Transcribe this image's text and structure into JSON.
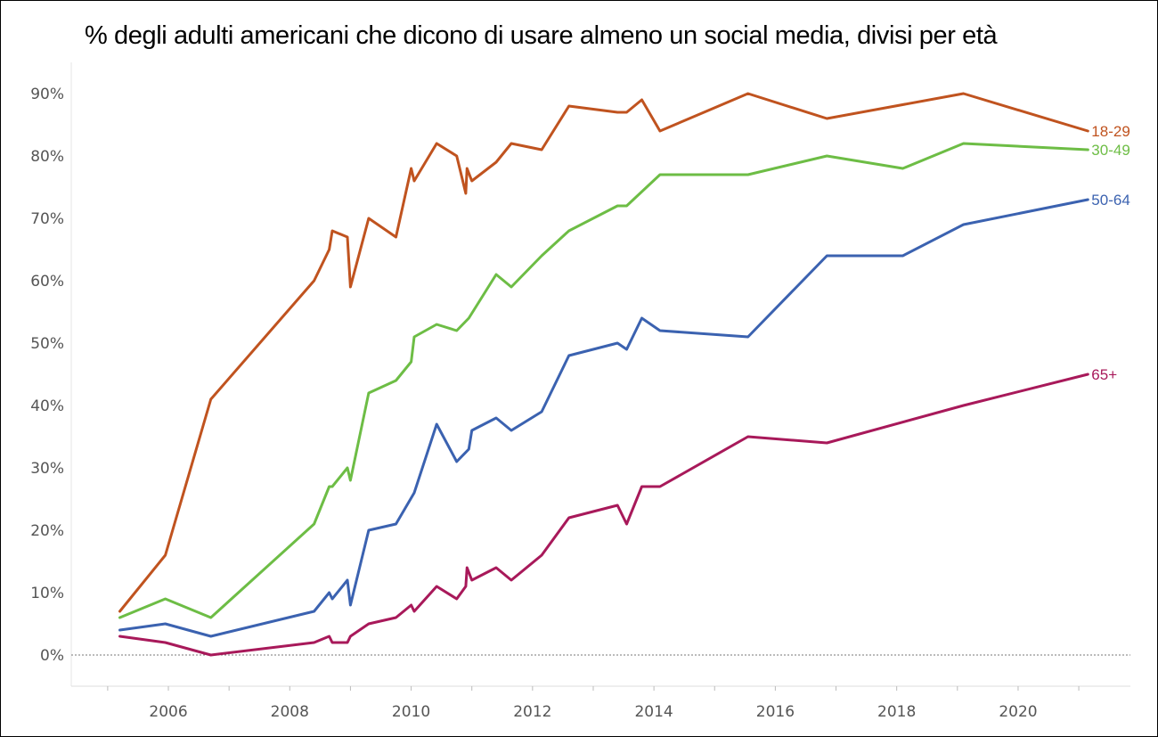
{
  "chart_data": {
    "type": "line",
    "title": "% degli adulti americani che dicono di usare almeno un social media, divisi per età",
    "xlabel": "",
    "ylabel": "",
    "xlim": [
      2004.4,
      2021.85
    ],
    "ylim": [
      -5,
      95
    ],
    "x_ticks": [
      "2006",
      "2008",
      "2010",
      "2012",
      "2014",
      "2016",
      "2018",
      "2020"
    ],
    "y_ticks": [
      "0%",
      "10%",
      "20%",
      "30%",
      "40%",
      "50%",
      "60%",
      "70%",
      "80%",
      "90%"
    ],
    "grid": false,
    "zero_line": true,
    "series": [
      {
        "name": "18-29",
        "color": "#c0531f",
        "points": [
          [
            2005.2,
            7
          ],
          [
            2005.95,
            16
          ],
          [
            2006.7,
            41
          ],
          [
            2008.4,
            60
          ],
          [
            2008.65,
            65
          ],
          [
            2008.7,
            68
          ],
          [
            2008.95,
            67
          ],
          [
            2009.0,
            59
          ],
          [
            2009.3,
            70
          ],
          [
            2009.75,
            67
          ],
          [
            2010.0,
            78
          ],
          [
            2010.05,
            76
          ],
          [
            2010.42,
            82
          ],
          [
            2010.75,
            80
          ],
          [
            2010.9,
            74
          ],
          [
            2010.92,
            78
          ],
          [
            2011.0,
            76
          ],
          [
            2011.4,
            79
          ],
          [
            2011.65,
            82
          ],
          [
            2012.15,
            81
          ],
          [
            2012.6,
            88
          ],
          [
            2013.4,
            87
          ],
          [
            2013.55,
            87
          ],
          [
            2013.8,
            89
          ],
          [
            2014.1,
            84
          ],
          [
            2015.55,
            90
          ],
          [
            2016.85,
            86
          ],
          [
            2019.1,
            90
          ],
          [
            2021.15,
            84
          ]
        ]
      },
      {
        "name": "30-49",
        "color": "#6dbd45",
        "points": [
          [
            2005.2,
            6
          ],
          [
            2005.95,
            9
          ],
          [
            2006.7,
            6
          ],
          [
            2008.4,
            21
          ],
          [
            2008.65,
            27
          ],
          [
            2008.7,
            27
          ],
          [
            2008.95,
            30
          ],
          [
            2009.0,
            28
          ],
          [
            2009.3,
            42
          ],
          [
            2009.75,
            44
          ],
          [
            2010.0,
            47
          ],
          [
            2010.05,
            51
          ],
          [
            2010.42,
            53
          ],
          [
            2010.75,
            52
          ],
          [
            2010.95,
            54
          ],
          [
            2011.4,
            61
          ],
          [
            2011.65,
            59
          ],
          [
            2012.15,
            64
          ],
          [
            2012.6,
            68
          ],
          [
            2013.4,
            72
          ],
          [
            2013.55,
            72
          ],
          [
            2014.1,
            77
          ],
          [
            2015.55,
            77
          ],
          [
            2016.85,
            80
          ],
          [
            2018.1,
            78
          ],
          [
            2019.1,
            82
          ],
          [
            2021.15,
            81
          ]
        ]
      },
      {
        "name": "50-64",
        "color": "#3b62b0",
        "points": [
          [
            2005.2,
            4
          ],
          [
            2005.95,
            5
          ],
          [
            2006.7,
            3
          ],
          [
            2008.4,
            7
          ],
          [
            2008.65,
            10
          ],
          [
            2008.7,
            9
          ],
          [
            2008.95,
            12
          ],
          [
            2009.0,
            8
          ],
          [
            2009.3,
            20
          ],
          [
            2009.75,
            21
          ],
          [
            2010.05,
            26
          ],
          [
            2010.42,
            37
          ],
          [
            2010.75,
            31
          ],
          [
            2010.95,
            33
          ],
          [
            2011.0,
            36
          ],
          [
            2011.4,
            38
          ],
          [
            2011.65,
            36
          ],
          [
            2012.15,
            39
          ],
          [
            2012.6,
            48
          ],
          [
            2013.4,
            50
          ],
          [
            2013.55,
            49
          ],
          [
            2013.8,
            54
          ],
          [
            2014.1,
            52
          ],
          [
            2015.55,
            51
          ],
          [
            2016.85,
            64
          ],
          [
            2018.1,
            64
          ],
          [
            2019.1,
            69
          ],
          [
            2021.15,
            73
          ]
        ]
      },
      {
        "name": "65+",
        "color": "#a8195a",
        "points": [
          [
            2005.2,
            3
          ],
          [
            2005.95,
            2
          ],
          [
            2006.7,
            0
          ],
          [
            2008.4,
            2
          ],
          [
            2008.65,
            3
          ],
          [
            2008.7,
            2
          ],
          [
            2008.95,
            2
          ],
          [
            2009.0,
            3
          ],
          [
            2009.3,
            5
          ],
          [
            2009.75,
            6
          ],
          [
            2010.0,
            8
          ],
          [
            2010.05,
            7
          ],
          [
            2010.42,
            11
          ],
          [
            2010.75,
            9
          ],
          [
            2010.9,
            11
          ],
          [
            2010.92,
            14
          ],
          [
            2011.0,
            12
          ],
          [
            2011.4,
            14
          ],
          [
            2011.65,
            12
          ],
          [
            2012.15,
            16
          ],
          [
            2012.6,
            22
          ],
          [
            2013.4,
            24
          ],
          [
            2013.55,
            21
          ],
          [
            2013.8,
            27
          ],
          [
            2014.1,
            27
          ],
          [
            2015.55,
            35
          ],
          [
            2016.85,
            34
          ],
          [
            2019.1,
            40
          ],
          [
            2021.15,
            45
          ]
        ]
      }
    ]
  }
}
